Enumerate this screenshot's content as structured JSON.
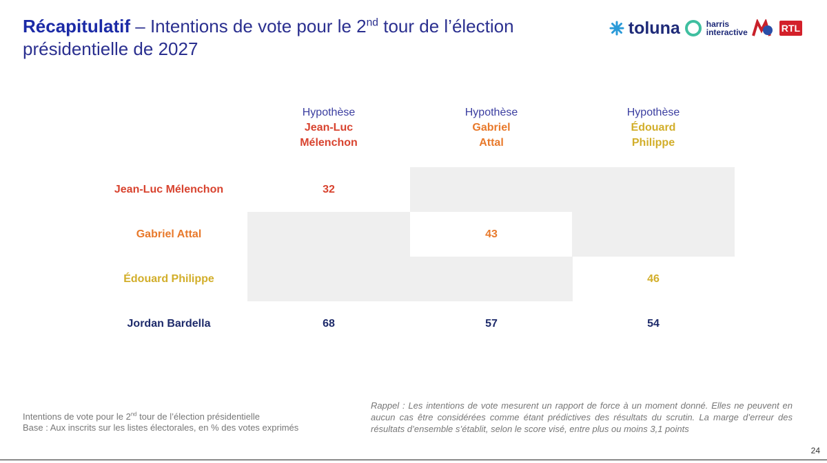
{
  "header": {
    "title_bold": "Récapitulatif",
    "title_pre": "– Intentions de vote pour le 2",
    "title_sup": "nd",
    "title_post": "tour de l’élection présidentielle de 2027"
  },
  "logos": {
    "toluna": "toluna",
    "harris_1": "harris",
    "harris_2": "interactive",
    "rtl": "RTL"
  },
  "table": {
    "columns": [
      {
        "hypothesis": "Hypothèse",
        "name_1": "Jean-Luc",
        "name_2": "Mélenchon"
      },
      {
        "hypothesis": "Hypothèse",
        "name_1": "Gabriel",
        "name_2": "Attal"
      },
      {
        "hypothesis": "Hypothèse",
        "name_1": "Édouard",
        "name_2": "Philippe"
      }
    ],
    "rows": [
      {
        "label": "Jean-Luc Mélenchon",
        "values": [
          32,
          null,
          null
        ]
      },
      {
        "label": "Gabriel Attal",
        "values": [
          null,
          43,
          null
        ]
      },
      {
        "label": "Édouard Philippe",
        "values": [
          null,
          null,
          46
        ]
      },
      {
        "label": "Jordan Bardella",
        "values": [
          68,
          57,
          54
        ]
      }
    ]
  },
  "footer": {
    "left_1_pre": "Intentions de vote pour le 2",
    "left_1_sup": "nd",
    "left_1_post": "tour de l’élection présidentielle",
    "left_2": "Base : Aux inscrits sur les listes électorales, en % des votes exprimés",
    "note": "Rappel : Les intentions de vote mesurent un rapport de force à un moment donné. Elles ne peuvent en aucun cas être considérées comme étant prédictives des résultats du scrutin. La marge d’erreur des résultats d’ensemble s’établit, selon le score visé, entre plus ou moins 3,1 points",
    "page": 24
  }
}
